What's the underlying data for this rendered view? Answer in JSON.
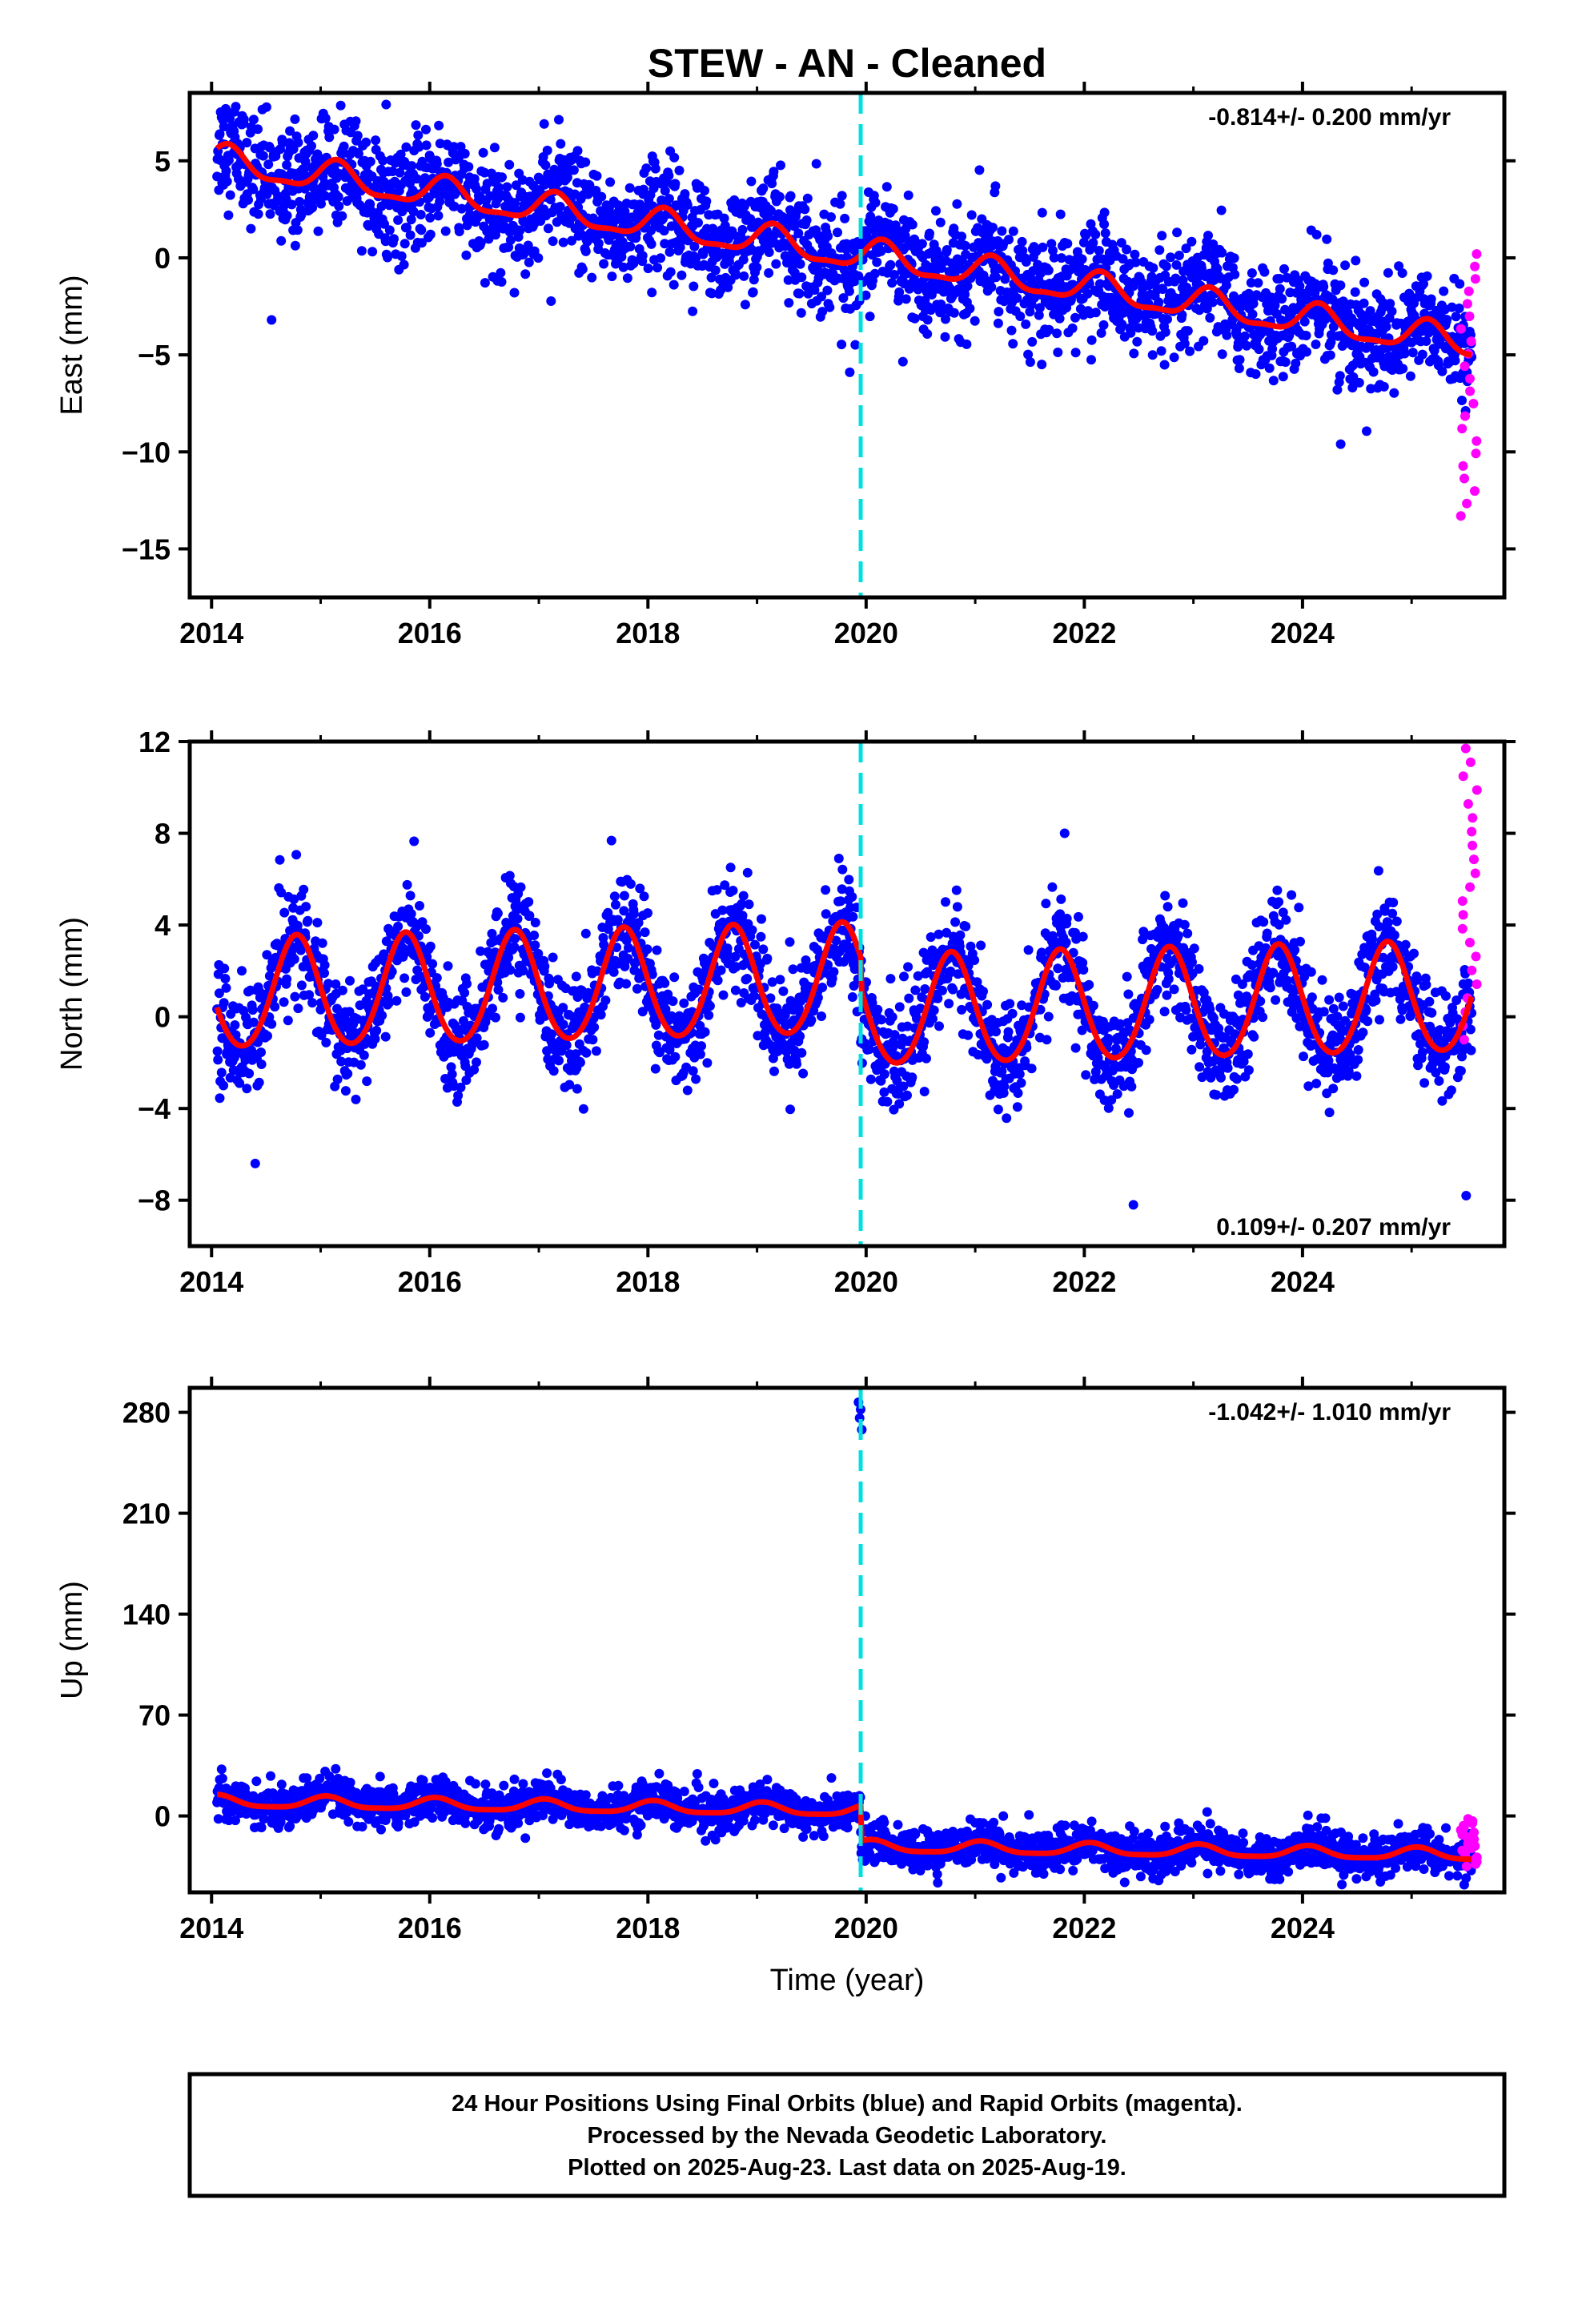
{
  "page": {
    "title": "STEW  - AN - Cleaned",
    "footer_lines": [
      "24 Hour Positions Using Final Orbits (blue) and Rapid Orbits (magenta).",
      "Processed by the Nevada Geodetic Laboratory.",
      "Plotted on 2025-Aug-23. Last data on 2025-Aug-19."
    ]
  },
  "colors": {
    "final_orbits": "#0000ff",
    "rapid_orbits": "#ff00ff",
    "model_fit": "#ff0000",
    "event_line": "#00e0e0",
    "axes": "#000000"
  },
  "chart_data": [
    {
      "type": "scatter",
      "name": "east",
      "ylabel": "East (mm)",
      "xlabel": "",
      "xlim": [
        2013.8,
        2025.85
      ],
      "ylim": [
        -17.5,
        8.5
      ],
      "xticks": [
        2014,
        2016,
        2018,
        2020,
        2022,
        2024
      ],
      "yticks": [
        5,
        0,
        -5,
        -10,
        -15
      ],
      "ytick_labels": [
        "5",
        "0",
        "−5",
        "−10",
        "−15"
      ],
      "rate_label": "-0.814+/- 0.200 mm/yr",
      "rate_position": "top-right",
      "event_lines": [
        2019.95
      ],
      "model": {
        "offset": 5.0,
        "trend": -0.82,
        "annual_amp": 0.75,
        "annual_phase": 0.15,
        "semiannual_amp": 0.25,
        "step_at": null,
        "step": 0
      },
      "final_orbits": {
        "x_range": [
          2014.05,
          2025.55
        ],
        "scatter": 1.4,
        "extremes": [
          [
            2015.6,
            7.9
          ],
          [
            2014.55,
            -3.2
          ],
          [
            2019.85,
            -5.9
          ],
          [
            2024.35,
            -9.6
          ]
        ]
      },
      "rapid_orbits": {
        "x_range": [
          2025.45,
          2025.6
        ],
        "y_range": [
          -13.3,
          0.2
        ]
      }
    },
    {
      "type": "scatter",
      "name": "north",
      "ylabel": "North (mm)",
      "xlabel": "",
      "xlim": [
        2013.8,
        2025.85
      ],
      "ylim": [
        -10,
        12
      ],
      "xticks": [
        2014,
        2016,
        2018,
        2020,
        2022,
        2024
      ],
      "yticks": [
        12,
        8,
        4,
        0,
        -4,
        -8
      ],
      "ytick_labels": [
        "12",
        "8",
        "4",
        "0",
        "−4",
        "−8"
      ],
      "rate_label": "0.109+/- 0.207 mm/yr",
      "rate_position": "bottom-right",
      "event_lines": [
        2019.95
      ],
      "model": {
        "offset": 0.9,
        "trend": 0.11,
        "annual_amp": 2.4,
        "annual_phase": 0.78,
        "semiannual_amp": 0.2,
        "step_at": 2019.95,
        "step": -1.4
      },
      "final_orbits": {
        "x_range": [
          2014.05,
          2025.55
        ],
        "scatter": 1.2,
        "extremes": [
          [
            2019.75,
            6.9
          ],
          [
            2014.4,
            -6.4
          ],
          [
            2022.45,
            -8.2
          ],
          [
            2025.5,
            -7.8
          ]
        ]
      },
      "rapid_orbits": {
        "x_range": [
          2025.45,
          2025.6
        ],
        "y_range": [
          -1.0,
          11.7
        ]
      }
    },
    {
      "type": "scatter",
      "name": "up",
      "ylabel": "Up (mm)",
      "xlabel": "Time (year)",
      "xlim": [
        2013.8,
        2025.85
      ],
      "ylim": [
        -53,
        297
      ],
      "xticks": [
        2014,
        2016,
        2018,
        2020,
        2022,
        2024
      ],
      "yticks": [
        280,
        210,
        140,
        70,
        0
      ],
      "ytick_labels": [
        "280",
        "210",
        "140",
        "70",
        "0"
      ],
      "rate_label": "-1.042+/- 1.010 mm/yr",
      "rate_position": "top-right",
      "event_lines": [
        2019.95
      ],
      "model": {
        "offset": 10,
        "trend": -1.04,
        "annual_amp": 4.0,
        "annual_phase": 0.05,
        "semiannual_amp": 1.0,
        "step_at": 2019.95,
        "step": -25
      },
      "final_orbits": {
        "x_range": [
          2014.05,
          2025.55
        ],
        "scatter": 7.0,
        "extremes": [
          [
            2019.93,
            287
          ],
          [
            2019.95,
            282
          ],
          [
            2019.94,
            276
          ],
          [
            2019.96,
            268
          ]
        ]
      },
      "rapid_orbits": {
        "x_range": [
          2025.45,
          2025.6
        ],
        "y_range": [
          -35,
          -2
        ]
      }
    }
  ]
}
